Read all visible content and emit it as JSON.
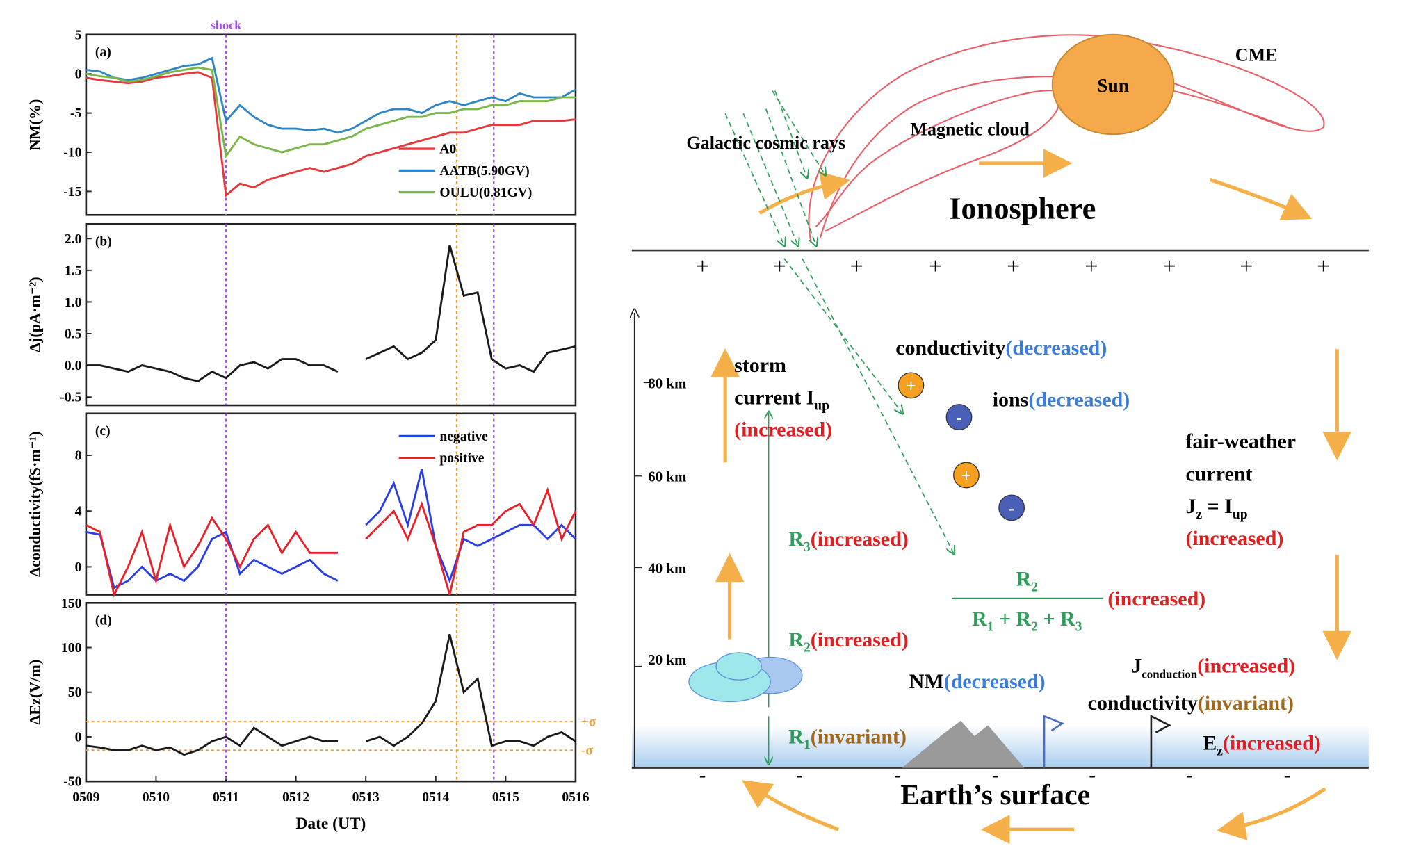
{
  "chart_data": [
    {
      "type": "line",
      "panel_label": "(a)",
      "ylabel": "NM(%)",
      "annotation": "shock",
      "xlim": [
        9,
        16
      ],
      "ylim": [
        -18,
        5
      ],
      "yticks": [
        5,
        0,
        -5,
        -10,
        -15
      ],
      "legend": "lower right",
      "x": [
        9,
        9.2,
        9.4,
        9.6,
        9.8,
        10,
        10.2,
        10.4,
        10.6,
        10.8,
        11,
        11.2,
        11.4,
        11.6,
        11.8,
        12,
        12.2,
        12.4,
        12.6,
        12.8,
        13,
        13.2,
        13.4,
        13.6,
        13.8,
        14,
        14.2,
        14.4,
        14.6,
        14.8,
        15,
        15.2,
        15.4,
        15.6,
        15.8,
        16
      ],
      "series": [
        {
          "name": "A0",
          "color": "#e8383d",
          "values": [
            -0.5,
            -0.8,
            -1,
            -1.2,
            -1,
            -0.5,
            -0.3,
            0,
            0.2,
            -0.5,
            -15.5,
            -14,
            -14.5,
            -13.5,
            -13,
            -12.5,
            -12,
            -12.5,
            -12,
            -11.5,
            -10.5,
            -10,
            -9.5,
            -9,
            -8.5,
            -8,
            -7.5,
            -7.5,
            -7,
            -6.5,
            -6.5,
            -6.5,
            -6,
            -6,
            -6,
            -5.8
          ]
        },
        {
          "name": "AATB(5.90GV)",
          "color": "#2f86c5",
          "values": [
            0.5,
            0.3,
            -0.5,
            -0.8,
            -0.5,
            0,
            0.5,
            1,
            1.2,
            2,
            -6,
            -4,
            -5.5,
            -6.5,
            -7,
            -7,
            -7.2,
            -7,
            -7.5,
            -7,
            -6,
            -5,
            -4.5,
            -4.5,
            -5,
            -4,
            -3.5,
            -4,
            -3.5,
            -3,
            -3.5,
            -2.5,
            -3,
            -3,
            -3,
            -2
          ]
        },
        {
          "name": "OULU(0.81GV)",
          "color": "#7ab648",
          "values": [
            0,
            -0.3,
            -0.5,
            -1,
            -0.8,
            -0.3,
            0.2,
            0.5,
            0.8,
            0.5,
            -10.5,
            -8,
            -9,
            -9.5,
            -10,
            -9.5,
            -9,
            -9,
            -8.5,
            -8,
            -7,
            -6.5,
            -6,
            -5.5,
            -5.5,
            -5,
            -5,
            -4.5,
            -4.5,
            -4,
            -4,
            -3.5,
            -3.5,
            -3.5,
            -3,
            -3
          ]
        }
      ],
      "vlines": [
        {
          "x": 11,
          "color": "#a64df0"
        },
        {
          "x": 14.3,
          "color": "#f0a030"
        },
        {
          "x": 14.83,
          "color": "#a64df0"
        }
      ]
    },
    {
      "type": "line",
      "panel_label": "(b)",
      "ylabel": "Δj(pA·m⁻²)",
      "xlim": [
        9,
        16
      ],
      "ylim": [
        -0.63,
        2.23
      ],
      "yticks": [
        {
          "value": 2,
          "label": "2.0"
        },
        1.5,
        {
          "value": 1,
          "label": "1.0"
        },
        0.5,
        {
          "value": 0,
          "label": "0.0"
        },
        -0.5
      ],
      "x": [
        9,
        9.2,
        9.4,
        9.6,
        9.8,
        10,
        10.2,
        10.4,
        10.6,
        10.8,
        11,
        11.2,
        11.4,
        11.6,
        11.8,
        12,
        12.2,
        12.4,
        12.6,
        12.8,
        13,
        13.2,
        13.4,
        13.6,
        13.8,
        14,
        14.2,
        14.4,
        14.6,
        14.8,
        15,
        15.2,
        15.4,
        15.6,
        15.8,
        16
      ],
      "series": [
        {
          "color": "#1a1a1a",
          "values": [
            0,
            0,
            -0.05,
            -0.1,
            0,
            -0.05,
            -0.1,
            -0.2,
            -0.25,
            -0.1,
            -0.2,
            0,
            0.05,
            -0.05,
            0.1,
            0.1,
            0,
            0,
            -0.1,
            null,
            0.1,
            0.2,
            0.3,
            0.1,
            0.2,
            0.4,
            1.9,
            1.1,
            1.15,
            0.1,
            -0.05,
            0,
            -0.1,
            0.2,
            0.25,
            0.3
          ]
        }
      ],
      "vlines": [
        {
          "x": 11,
          "color": "#a64df0"
        },
        {
          "x": 14.3,
          "color": "#f0a030"
        },
        {
          "x": 14.83,
          "color": "#a64df0"
        }
      ]
    },
    {
      "type": "line",
      "panel_label": "(c)",
      "ylabel": "Δconductivity(fS·m⁻¹)",
      "xlim": [
        9,
        16
      ],
      "ylim": [
        -2,
        11
      ],
      "yticks": [
        8,
        4,
        0
      ],
      "legend": "upper right",
      "x": [
        9,
        9.2,
        9.4,
        9.6,
        9.8,
        10,
        10.2,
        10.4,
        10.6,
        10.8,
        11,
        11.2,
        11.4,
        11.6,
        11.8,
        12,
        12.2,
        12.4,
        12.6,
        12.8,
        13,
        13.2,
        13.4,
        13.6,
        13.8,
        14,
        14.2,
        14.4,
        14.6,
        14.8,
        15,
        15.2,
        15.4,
        15.6,
        15.8,
        16
      ],
      "series": [
        {
          "name": "negative",
          "color": "#2a3ee8",
          "values": [
            2.5,
            2.3,
            -1.5,
            -1,
            0,
            -1,
            -0.5,
            -1,
            0,
            2,
            2.5,
            -0.5,
            0.5,
            0,
            -0.5,
            0,
            0.5,
            -0.5,
            -1,
            null,
            3,
            4,
            6,
            3,
            7,
            1.5,
            -1,
            2,
            1.5,
            2,
            2.5,
            3,
            3,
            2,
            3,
            2
          ]
        },
        {
          "name": "positive",
          "color": "#e8202a",
          "values": [
            3,
            2.5,
            -2,
            0,
            2.5,
            -1,
            3,
            0,
            1.5,
            3.5,
            2,
            0,
            2,
            3,
            1,
            2.5,
            1,
            1,
            1,
            null,
            2,
            3,
            4,
            2,
            4.5,
            1.5,
            -2,
            2.5,
            3,
            3,
            4,
            4.5,
            3,
            5.5,
            2,
            4
          ]
        }
      ],
      "vlines": [
        {
          "x": 11,
          "color": "#a64df0"
        },
        {
          "x": 14.3,
          "color": "#f0a030"
        },
        {
          "x": 14.83,
          "color": "#a64df0"
        }
      ]
    },
    {
      "type": "line",
      "panel_label": "(d)",
      "ylabel": "ΔEz(V/m)",
      "xlabel": "Date (UT)",
      "xlim": [
        9,
        16
      ],
      "ylim": [
        -50,
        150
      ],
      "yticks": [
        150,
        100,
        50,
        0,
        -50
      ],
      "xticks": [
        {
          "value": 9,
          "label": "0509"
        },
        {
          "value": 10,
          "label": "0510"
        },
        {
          "value": 11,
          "label": "0511"
        },
        {
          "value": 12,
          "label": "0512"
        },
        {
          "value": 13,
          "label": "0513"
        },
        {
          "value": 14,
          "label": "0514"
        },
        {
          "value": 15,
          "label": "0515"
        },
        {
          "value": 16,
          "label": "0516"
        }
      ],
      "x": [
        9,
        9.2,
        9.4,
        9.6,
        9.8,
        10,
        10.2,
        10.4,
        10.6,
        10.8,
        11,
        11.2,
        11.4,
        11.6,
        11.8,
        12,
        12.2,
        12.4,
        12.6,
        12.8,
        13,
        13.2,
        13.4,
        13.6,
        13.8,
        14,
        14.2,
        14.4,
        14.6,
        14.8,
        15,
        15.2,
        15.4,
        15.6,
        15.8,
        16
      ],
      "series": [
        {
          "color": "#1a1a1a",
          "values": [
            -10,
            -12,
            -15,
            -15,
            -10,
            -15,
            -12,
            -20,
            -15,
            -5,
            0,
            -10,
            10,
            0,
            -10,
            -5,
            0,
            -5,
            -5,
            null,
            -5,
            0,
            -10,
            0,
            15,
            40,
            115,
            50,
            65,
            -10,
            -5,
            -5,
            -10,
            0,
            5,
            -5
          ]
        }
      ],
      "sigma_lines": [
        {
          "value": 17,
          "label": "+σ"
        },
        {
          "value": -15,
          "label": "-σ"
        }
      ],
      "vlines": [
        {
          "x": 11,
          "color": "#a64df0"
        },
        {
          "x": 14.3,
          "color": "#f0a030"
        },
        {
          "x": 14.83,
          "color": "#a64df0"
        }
      ]
    }
  ],
  "diagram": {
    "sun": "Sun",
    "cme": "CME",
    "magnetic_cloud": "Magnetic cloud",
    "cosmic_rays": "Galactic cosmic rays",
    "ionosphere": "Ionosphere",
    "surface": "Earth’s surface",
    "altitudes": [
      "80 km",
      "60 km",
      "40 km",
      "20 km"
    ],
    "plus": [
      "+",
      "+",
      "+",
      "+",
      "+",
      "+",
      "+",
      "+",
      "+"
    ],
    "minus": [
      "-",
      "-",
      "-",
      "-",
      "-",
      "-",
      "-"
    ],
    "ions": [
      "+",
      "-",
      "+",
      "-"
    ],
    "storm": {
      "line1": "storm",
      "line2": "current I",
      "sub": "up",
      "status": "(increased)"
    },
    "conductivity_top": {
      "text": "conductivity",
      "status": "(decreased)"
    },
    "ions_label": {
      "text": "ions",
      "status": "(decreased)"
    },
    "fair_weather": {
      "line1": "fair-weather",
      "line2": "current",
      "j": "J",
      "j_sub": "z",
      "eq": " = I",
      "i_sub": "up",
      "status": "(increased)"
    },
    "r3": {
      "text": "R",
      "sub": "3",
      "status": "(increased)"
    },
    "r2": {
      "text": "R",
      "sub": "2",
      "status": "(increased)"
    },
    "r1": {
      "text": "R",
      "sub": "1",
      "status": "(invariant)"
    },
    "ratio": {
      "num": "R",
      "num_sub": "2",
      "den": [
        "R",
        "1",
        " + R",
        "2",
        " + R",
        "3"
      ],
      "status": "(increased)"
    },
    "nm": {
      "text": "NM",
      "status": "(decreased)"
    },
    "j_conduction": {
      "text": "J",
      "sub": "conduction",
      "status": "(increased)"
    },
    "conductivity_ground": {
      "text": "conductivity",
      "status": "(invariant)"
    },
    "ez": {
      "text": "E",
      "sub": "z",
      "status": "(increased)"
    }
  }
}
